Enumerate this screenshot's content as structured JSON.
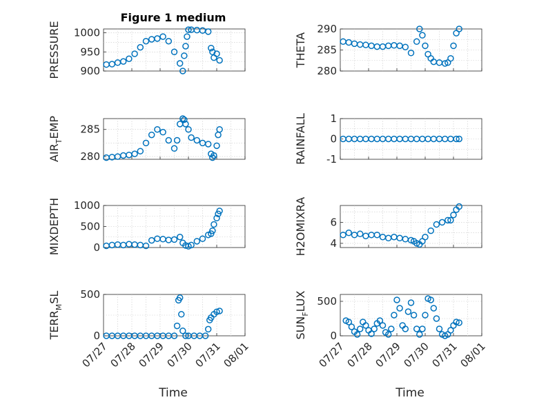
{
  "figure": {
    "title": "Figure 1 medium"
  },
  "colors": {
    "marker": "#0072BD",
    "axis": "#262626",
    "grid": "#c8c8c8"
  },
  "time_ticks": [
    "07/27",
    "07/28",
    "07/29",
    "07/30",
    "07/31",
    "08/01"
  ],
  "chart_data": [
    {
      "id": "pressure",
      "type": "scatter",
      "ylabel": "PRESSURE",
      "ylim": [
        900,
        1010
      ],
      "yticks": [
        900,
        950,
        1000
      ],
      "grid": true,
      "x": [
        0.1,
        0.3,
        0.5,
        0.7,
        0.9,
        1.1,
        1.3,
        1.5,
        1.7,
        1.9,
        2.1,
        2.3,
        2.5,
        2.7,
        2.8,
        2.85,
        2.9,
        2.95,
        3.0,
        3.1,
        3.3,
        3.5,
        3.7,
        3.8,
        3.85,
        3.9,
        4.0,
        4.1
      ],
      "y": [
        917,
        918,
        922,
        925,
        932,
        945,
        962,
        978,
        983,
        985,
        990,
        978,
        950,
        920,
        900,
        940,
        965,
        990,
        1008,
        1008,
        1007,
        1006,
        1003,
        960,
        950,
        935,
        945,
        928
      ]
    },
    {
      "id": "theta",
      "type": "scatter",
      "ylabel": "THETA",
      "ylim": [
        280,
        290
      ],
      "yticks": [
        280,
        285,
        290
      ],
      "grid": true,
      "x": [
        0.1,
        0.3,
        0.5,
        0.7,
        0.9,
        1.1,
        1.3,
        1.5,
        1.7,
        1.9,
        2.1,
        2.3,
        2.5,
        2.7,
        2.8,
        2.9,
        3.0,
        3.1,
        3.2,
        3.3,
        3.5,
        3.7,
        3.8,
        3.9,
        4.0,
        4.1,
        4.2
      ],
      "y": [
        287,
        286.8,
        286.5,
        286.3,
        286.2,
        286,
        285.8,
        285.8,
        286,
        286.1,
        286,
        285.7,
        284.3,
        287,
        290,
        288.5,
        286,
        284,
        283,
        282.2,
        282,
        281.8,
        282,
        283,
        286,
        289,
        290
      ]
    },
    {
      "id": "air_temp",
      "type": "scatter",
      "ylabel": "AIR",
      "ylabel_sub": "T",
      "ylabel_rest": "EMP",
      "ylim": [
        279.5,
        287
      ],
      "yticks": [
        280,
        285
      ],
      "grid": true,
      "x": [
        0.1,
        0.3,
        0.5,
        0.7,
        0.9,
        1.1,
        1.3,
        1.5,
        1.7,
        1.9,
        2.1,
        2.3,
        2.5,
        2.6,
        2.7,
        2.8,
        2.85,
        2.9,
        3.0,
        3.1,
        3.3,
        3.5,
        3.7,
        3.8,
        3.85,
        3.9,
        4.0,
        4.05,
        4.1
      ],
      "y": [
        279.8,
        279.9,
        280,
        280.2,
        280.3,
        280.5,
        281,
        282.5,
        284,
        285,
        284.5,
        283,
        281.5,
        283,
        286,
        287,
        286.8,
        286,
        285,
        283.5,
        283,
        282.5,
        282.3,
        280.5,
        279.8,
        280.2,
        282,
        284,
        285
      ]
    },
    {
      "id": "rainfall",
      "type": "scatter",
      "ylabel": "RAINFALL",
      "ylim": [
        -1,
        1
      ],
      "yticks": [
        -1,
        0,
        1
      ],
      "grid": true,
      "x": [
        0.1,
        0.3,
        0.5,
        0.7,
        0.9,
        1.1,
        1.3,
        1.5,
        1.7,
        1.9,
        2.1,
        2.3,
        2.5,
        2.7,
        2.9,
        3.1,
        3.3,
        3.5,
        3.7,
        3.9,
        4.1,
        4.2
      ],
      "y": [
        0,
        0,
        0,
        0,
        0,
        0,
        0,
        0,
        0,
        0,
        0,
        0,
        0,
        0,
        0,
        0,
        0,
        0,
        0,
        0,
        0,
        0
      ]
    },
    {
      "id": "mixdepth",
      "type": "scatter",
      "ylabel": "MIXDEPTH",
      "ylim": [
        0,
        1000
      ],
      "yticks": [
        0,
        500,
        1000
      ],
      "grid": true,
      "x": [
        0.1,
        0.3,
        0.5,
        0.7,
        0.9,
        1.1,
        1.3,
        1.5,
        1.7,
        1.9,
        2.1,
        2.3,
        2.5,
        2.7,
        2.8,
        2.9,
        3.0,
        3.1,
        3.3,
        3.5,
        3.7,
        3.8,
        3.85,
        3.9,
        4.0,
        4.05,
        4.1
      ],
      "y": [
        40,
        60,
        70,
        60,
        80,
        70,
        60,
        40,
        170,
        210,
        200,
        180,
        190,
        250,
        110,
        50,
        30,
        60,
        150,
        210,
        300,
        330,
        400,
        550,
        700,
        800,
        870
      ]
    },
    {
      "id": "h2omixra",
      "type": "scatter",
      "ylabel": "H2OMIXRA",
      "ylim": [
        3.6,
        7.6
      ],
      "yticks": [
        4,
        6
      ],
      "grid": true,
      "x": [
        0.1,
        0.3,
        0.5,
        0.7,
        0.9,
        1.1,
        1.3,
        1.5,
        1.7,
        1.9,
        2.1,
        2.3,
        2.5,
        2.6,
        2.7,
        2.8,
        2.9,
        3.0,
        3.2,
        3.4,
        3.6,
        3.8,
        3.9,
        4.0,
        4.1,
        4.2
      ],
      "y": [
        4.8,
        5,
        4.8,
        4.9,
        4.7,
        4.8,
        4.8,
        4.6,
        4.5,
        4.6,
        4.5,
        4.4,
        4.3,
        4.2,
        4,
        3.9,
        4.2,
        4.6,
        5.2,
        5.8,
        6,
        6.2,
        6.2,
        6.7,
        7.2,
        7.5
      ]
    },
    {
      "id": "terr_msl",
      "type": "scatter",
      "ylabel": "TERR",
      "ylabel_sub": "M",
      "ylabel_rest": "SL",
      "ylim": [
        0,
        500
      ],
      "yticks": [
        0,
        500
      ],
      "grid": true,
      "x": [
        0.1,
        0.3,
        0.5,
        0.7,
        0.9,
        1.1,
        1.3,
        1.5,
        1.7,
        1.9,
        2.1,
        2.3,
        2.5,
        2.6,
        2.65,
        2.7,
        2.75,
        2.8,
        2.9,
        3.0,
        3.2,
        3.4,
        3.6,
        3.7,
        3.75,
        3.8,
        3.9,
        4.0,
        4.1
      ],
      "y": [
        0,
        0,
        0,
        0,
        0,
        0,
        0,
        0,
        0,
        0,
        0,
        0,
        0,
        120,
        430,
        460,
        260,
        60,
        0,
        0,
        0,
        0,
        0,
        80,
        190,
        220,
        260,
        290,
        300
      ]
    },
    {
      "id": "sun_flux",
      "type": "scatter",
      "ylabel": "SUN",
      "ylabel_sub": "F",
      "ylabel_rest": "LUX",
      "ylim": [
        0,
        600
      ],
      "yticks": [
        0,
        500
      ],
      "grid": true,
      "x": [
        0.2,
        0.3,
        0.4,
        0.5,
        0.6,
        0.7,
        0.8,
        0.9,
        1.0,
        1.1,
        1.2,
        1.3,
        1.4,
        1.5,
        1.6,
        1.7,
        1.8,
        1.9,
        2.0,
        2.1,
        2.2,
        2.3,
        2.4,
        2.5,
        2.6,
        2.7,
        2.8,
        2.9,
        3.0,
        3.1,
        3.2,
        3.3,
        3.4,
        3.5,
        3.6,
        3.7,
        3.8,
        3.9,
        4.0,
        4.1,
        4.2
      ],
      "y": [
        220,
        200,
        130,
        60,
        20,
        100,
        200,
        150,
        80,
        30,
        100,
        180,
        220,
        150,
        50,
        20,
        100,
        300,
        520,
        400,
        150,
        100,
        350,
        480,
        300,
        100,
        20,
        100,
        300,
        540,
        520,
        400,
        250,
        100,
        20,
        0,
        20,
        80,
        150,
        200,
        190
      ]
    }
  ]
}
